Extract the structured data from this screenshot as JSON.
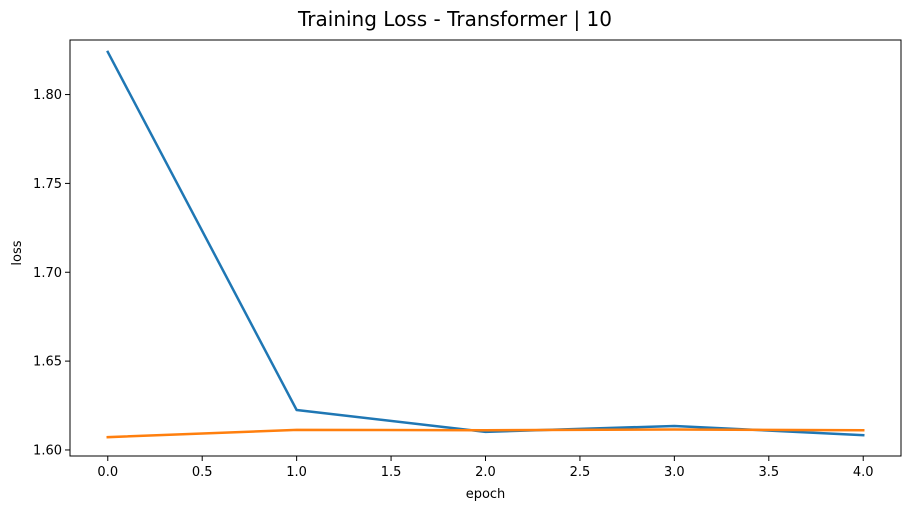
{
  "chart_data": {
    "type": "line",
    "title": "Training Loss - Transformer | 10",
    "xlabel": "epoch",
    "ylabel": "loss",
    "xlim": [
      -0.2,
      4.2
    ],
    "ylim": [
      1.5966,
      1.8307
    ],
    "xticks": [
      0.0,
      0.5,
      1.0,
      1.5,
      2.0,
      2.5,
      3.0,
      3.5,
      4.0
    ],
    "xtick_labels": [
      "0.0",
      "0.5",
      "1.0",
      "1.5",
      "2.0",
      "2.5",
      "3.0",
      "3.5",
      "4.0"
    ],
    "yticks": [
      1.6,
      1.65,
      1.7,
      1.75,
      1.8
    ],
    "ytick_labels": [
      "1.60",
      "1.65",
      "1.70",
      "1.75",
      "1.80"
    ],
    "grid": false,
    "legend": false,
    "series": [
      {
        "color": "#1f77b4",
        "x": [
          0,
          1,
          2,
          3,
          4
        ],
        "y": [
          1.824,
          1.6225,
          1.6102,
          1.6135,
          1.6083
        ]
      },
      {
        "color": "#ff7f0e",
        "x": [
          0,
          1,
          2,
          3,
          4
        ],
        "y": [
          1.6072,
          1.6113,
          1.6111,
          1.6115,
          1.6111
        ]
      }
    ]
  }
}
